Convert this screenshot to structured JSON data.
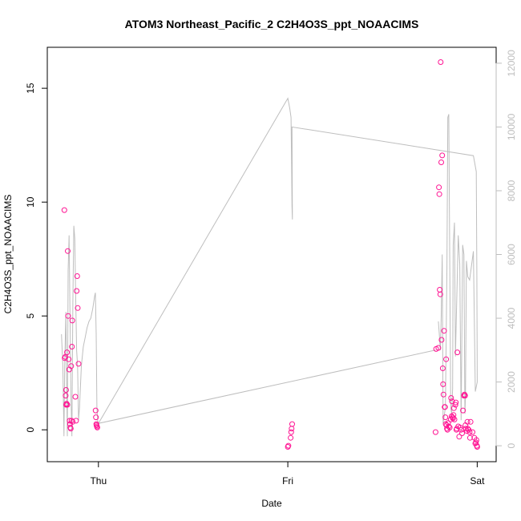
{
  "chart_data": {
    "type": "scatter",
    "title": "ATOM3 Northeast_Pacific_2 C2H4O3S_ppt_NOAACIMS",
    "xlabel": "Date",
    "ylabel": "C2H4O3S_ppt_NOAACIMS",
    "x_unit": "days since Wed 00:00",
    "xlim": [
      0.73,
      3.1
    ],
    "x_ticks": [
      {
        "value": 1,
        "label": "Thu"
      },
      {
        "value": 2,
        "label": "Fri"
      },
      {
        "value": 3,
        "label": "Sat"
      }
    ],
    "ylim": [
      -1.4,
      16.8
    ],
    "y_ticks": [
      0,
      5,
      10,
      15
    ],
    "y2lim": [
      -500,
      12500
    ],
    "y2_ticks": [
      0,
      2000,
      4000,
      6000,
      8000,
      10000,
      12000
    ],
    "colors": {
      "points": "#ff1493",
      "altitude_line": "#bebebe",
      "axis": "#000000",
      "right_axis": "#bebebe"
    },
    "series": [
      {
        "role": "points",
        "style": "open-circle",
        "color": "#ff1493",
        "points": [
          [
            0.82,
            9.65
          ],
          [
            0.822,
            3.15
          ],
          [
            0.825,
            3.2
          ],
          [
            0.827,
            1.5
          ],
          [
            0.829,
            1.75
          ],
          [
            0.83,
            1.1
          ],
          [
            0.832,
            1.15
          ],
          [
            0.834,
            3.4
          ],
          [
            0.836,
            1.1
          ],
          [
            0.838,
            7.85
          ],
          [
            0.84,
            5.0
          ],
          [
            0.843,
            3.1
          ],
          [
            0.846,
            2.65
          ],
          [
            0.848,
            0.4
          ],
          [
            0.85,
            0.25
          ],
          [
            0.852,
            0.1
          ],
          [
            0.854,
            0.05
          ],
          [
            0.856,
            2.8
          ],
          [
            0.858,
            0.4
          ],
          [
            0.86,
            3.65
          ],
          [
            0.862,
            4.8
          ],
          [
            0.864,
            0.35
          ],
          [
            0.878,
            1.45
          ],
          [
            0.882,
            0.4
          ],
          [
            0.885,
            6.1
          ],
          [
            0.888,
            6.75
          ],
          [
            0.891,
            5.35
          ],
          [
            0.895,
            2.9
          ],
          [
            0.985,
            0.85
          ],
          [
            0.987,
            0.55
          ],
          [
            0.989,
            0.25
          ],
          [
            0.99,
            0.2
          ],
          [
            0.992,
            0.15
          ],
          [
            0.994,
            0.1
          ],
          [
            2.0,
            -0.75
          ],
          [
            2.003,
            -0.7
          ],
          [
            2.015,
            -0.35
          ],
          [
            2.018,
            -0.1
          ],
          [
            2.02,
            0.05
          ],
          [
            2.023,
            0.25
          ],
          [
            2.78,
            -0.1
          ],
          [
            2.783,
            3.55
          ],
          [
            2.795,
            3.6
          ],
          [
            2.798,
            10.65
          ],
          [
            2.8,
            10.35
          ],
          [
            2.802,
            6.15
          ],
          [
            2.805,
            5.95
          ],
          [
            2.807,
            16.15
          ],
          [
            2.81,
            11.75
          ],
          [
            2.812,
            3.95
          ],
          [
            2.815,
            12.05
          ],
          [
            2.818,
            2.7
          ],
          [
            2.82,
            2.0
          ],
          [
            2.822,
            1.55
          ],
          [
            2.825,
            4.35
          ],
          [
            2.828,
            1.0
          ],
          [
            2.83,
            1.0
          ],
          [
            2.832,
            0.55
          ],
          [
            2.834,
            0.25
          ],
          [
            2.836,
            3.1
          ],
          [
            2.838,
            0.2
          ],
          [
            2.84,
            0.05
          ],
          [
            2.843,
            0.0
          ],
          [
            2.846,
            0.3
          ],
          [
            2.85,
            0.15
          ],
          [
            2.855,
            0.1
          ],
          [
            2.86,
            0.45
          ],
          [
            2.862,
            1.4
          ],
          [
            2.865,
            0.6
          ],
          [
            2.867,
            1.25
          ],
          [
            2.87,
            0.55
          ],
          [
            2.872,
            0.5
          ],
          [
            2.875,
            0.65
          ],
          [
            2.877,
            0.95
          ],
          [
            2.88,
            0.45
          ],
          [
            2.885,
            1.1
          ],
          [
            2.887,
            1.2
          ],
          [
            2.89,
            0.0
          ],
          [
            2.892,
            0.05
          ],
          [
            2.895,
            3.4
          ],
          [
            2.9,
            0.15
          ],
          [
            2.905,
            -0.3
          ],
          [
            2.91,
            0.1
          ],
          [
            2.915,
            0.0
          ],
          [
            2.92,
            -0.15
          ],
          [
            2.925,
            0.85
          ],
          [
            2.93,
            1.5
          ],
          [
            2.933,
            1.55
          ],
          [
            2.936,
            1.5
          ],
          [
            2.938,
            0.2
          ],
          [
            2.94,
            0.05
          ],
          [
            2.945,
            -0.05
          ],
          [
            2.948,
            0.35
          ],
          [
            2.95,
            0.05
          ],
          [
            2.955,
            0.0
          ],
          [
            2.96,
            -0.1
          ],
          [
            2.962,
            -0.35
          ],
          [
            2.965,
            0.35
          ],
          [
            2.975,
            -0.1
          ],
          [
            2.985,
            -0.35
          ],
          [
            2.99,
            -0.6
          ],
          [
            2.993,
            -0.55
          ],
          [
            2.996,
            -0.45
          ],
          [
            2.998,
            -0.7
          ],
          [
            3.0,
            -0.75
          ]
        ]
      },
      {
        "role": "altitude_line",
        "axis": "right",
        "color": "#bebebe",
        "points": [
          [
            0.805,
            3500
          ],
          [
            0.812,
            2500
          ],
          [
            0.818,
            300
          ],
          [
            0.822,
            2500
          ],
          [
            0.828,
            4200
          ],
          [
            0.832,
            2000
          ],
          [
            0.836,
            300
          ],
          [
            0.84,
            5500
          ],
          [
            0.845,
            6600
          ],
          [
            0.85,
            4000
          ],
          [
            0.855,
            1600
          ],
          [
            0.86,
            300
          ],
          [
            0.865,
            4500
          ],
          [
            0.87,
            6900
          ],
          [
            0.875,
            6500
          ],
          [
            0.88,
            4700
          ],
          [
            0.885,
            3000
          ],
          [
            0.89,
            2500
          ],
          [
            0.895,
            800
          ],
          [
            0.9,
            1200
          ],
          [
            0.91,
            2500
          ],
          [
            0.92,
            3100
          ],
          [
            0.93,
            3400
          ],
          [
            0.94,
            3700
          ],
          [
            0.95,
            3900
          ],
          [
            0.96,
            4000
          ],
          [
            0.97,
            4300
          ],
          [
            0.98,
            4700
          ],
          [
            0.984,
            4800
          ],
          [
            0.988,
            3500
          ],
          [
            0.992,
            1200
          ],
          [
            0.997,
            700
          ],
          [
            2.78,
            3000
          ],
          [
            1.0,
            700
          ],
          [
            2.0,
            10900
          ],
          [
            2.01,
            10600
          ],
          [
            2.017,
            10300
          ],
          [
            2.02,
            8800
          ],
          [
            2.022,
            7500
          ],
          [
            2.024,
            7100
          ],
          [
            2.022,
            10000
          ],
          [
            2.98,
            9100
          ],
          [
            2.995,
            8600
          ],
          [
            2.998,
            5500
          ],
          [
            3.0,
            2000
          ],
          [
            2.99,
            1700
          ],
          [
            2.98,
            6100
          ],
          [
            2.96,
            5200
          ],
          [
            2.95,
            5300
          ],
          [
            2.943,
            5800
          ],
          [
            2.938,
            1500
          ],
          [
            2.935,
            1000
          ],
          [
            2.93,
            6000
          ],
          [
            2.923,
            6300
          ],
          [
            2.915,
            800
          ],
          [
            2.908,
            5700
          ],
          [
            2.9,
            6600
          ],
          [
            2.885,
            2800
          ],
          [
            2.88,
            7000
          ],
          [
            2.873,
            6300
          ],
          [
            2.87,
            1800
          ],
          [
            2.865,
            1000
          ],
          [
            2.86,
            1200
          ],
          [
            2.85,
            10400
          ],
          [
            2.845,
            10300
          ],
          [
            2.84,
            5600
          ],
          [
            2.832,
            1200
          ],
          [
            2.82,
            700
          ],
          [
            2.815,
            6000
          ],
          [
            2.81,
            4100
          ],
          [
            2.808,
            3600
          ],
          [
            2.805,
            3000
          ],
          [
            2.8,
            3500
          ],
          [
            2.795,
            3900
          ]
        ]
      }
    ]
  }
}
